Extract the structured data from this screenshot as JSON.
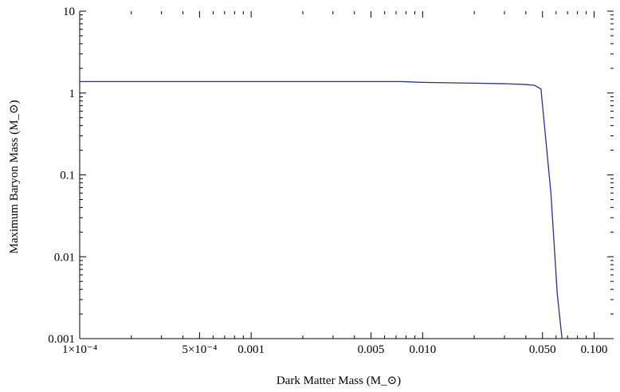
{
  "chart_data": {
    "type": "line",
    "title": "",
    "xlabel": "Dark Matter Mass (M_⊙)",
    "ylabel": "Maximum Baryon Mass (M_⊙)",
    "xscale": "log",
    "yscale": "log",
    "xlim": [
      0.0001,
      0.13
    ],
    "ylim": [
      0.001,
      10
    ],
    "grid": false,
    "legend": "none",
    "x_ticks": [
      {
        "value": 0.0001,
        "label": "1×10⁻⁴"
      },
      {
        "value": 0.0005,
        "label": "5×10⁻⁴"
      },
      {
        "value": 0.001,
        "label": "0.001"
      },
      {
        "value": 0.005,
        "label": "0.005"
      },
      {
        "value": 0.01,
        "label": "0.010"
      },
      {
        "value": 0.05,
        "label": "0.050"
      },
      {
        "value": 0.1,
        "label": "0.100"
      }
    ],
    "y_ticks": [
      {
        "value": 0.001,
        "label": "0.001"
      },
      {
        "value": 0.01,
        "label": "0.01"
      },
      {
        "value": 0.1,
        "label": "0.1"
      },
      {
        "value": 1,
        "label": "1"
      },
      {
        "value": 10,
        "label": "10"
      }
    ],
    "series": [
      {
        "color": "#2b2f8f",
        "x": [
          0.0001,
          0.0003,
          0.001,
          0.003,
          0.0075,
          0.01,
          0.015,
          0.02,
          0.03,
          0.04,
          0.045,
          0.049,
          0.056,
          0.061,
          0.065
        ],
        "y": [
          1.38,
          1.38,
          1.38,
          1.38,
          1.38,
          1.35,
          1.33,
          1.32,
          1.3,
          1.27,
          1.24,
          1.12,
          0.06,
          0.0035,
          0.001
        ]
      }
    ]
  }
}
